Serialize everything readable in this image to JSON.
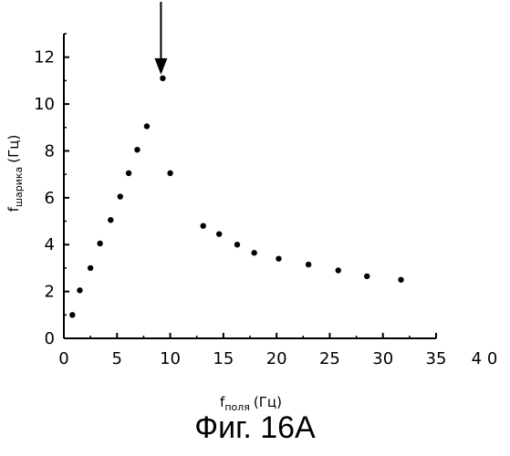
{
  "chart_data": {
    "type": "scatter",
    "title": "",
    "xlabel": {
      "main": "f",
      "sub": "поля",
      "unit": "(Гц)"
    },
    "ylabel": {
      "main": "f",
      "sub": "шарика",
      "unit": "(Гц)"
    },
    "xlim": [
      0,
      35
    ],
    "ylim": [
      0,
      13
    ],
    "xticks": [
      "0",
      "5",
      "10",
      "15",
      "20",
      "25",
      "30",
      "35"
    ],
    "yticks": [
      "0",
      "2",
      "4",
      "6",
      "8",
      "10",
      "12"
    ],
    "extra_x_label": "4 0",
    "grid": false,
    "points": [
      {
        "x": 0.8,
        "y": 1.0
      },
      {
        "x": 1.5,
        "y": 2.05
      },
      {
        "x": 2.5,
        "y": 3.0
      },
      {
        "x": 3.4,
        "y": 4.05
      },
      {
        "x": 4.4,
        "y": 5.05
      },
      {
        "x": 5.3,
        "y": 6.05
      },
      {
        "x": 6.1,
        "y": 7.05
      },
      {
        "x": 6.9,
        "y": 8.05
      },
      {
        "x": 7.8,
        "y": 9.05
      },
      {
        "x": 9.3,
        "y": 11.1
      },
      {
        "x": 10.0,
        "y": 7.05
      },
      {
        "x": 13.1,
        "y": 4.8
      },
      {
        "x": 14.6,
        "y": 4.45
      },
      {
        "x": 16.3,
        "y": 4.0
      },
      {
        "x": 17.9,
        "y": 3.65
      },
      {
        "x": 20.2,
        "y": 3.4
      },
      {
        "x": 23.0,
        "y": 3.15
      },
      {
        "x": 25.8,
        "y": 2.9
      },
      {
        "x": 28.5,
        "y": 2.65
      },
      {
        "x": 31.7,
        "y": 2.5
      }
    ],
    "annotation": {
      "type": "arrow",
      "points_to": {
        "x": 9.3,
        "y": 11.1
      }
    }
  },
  "caption": "Фиг. 16А"
}
